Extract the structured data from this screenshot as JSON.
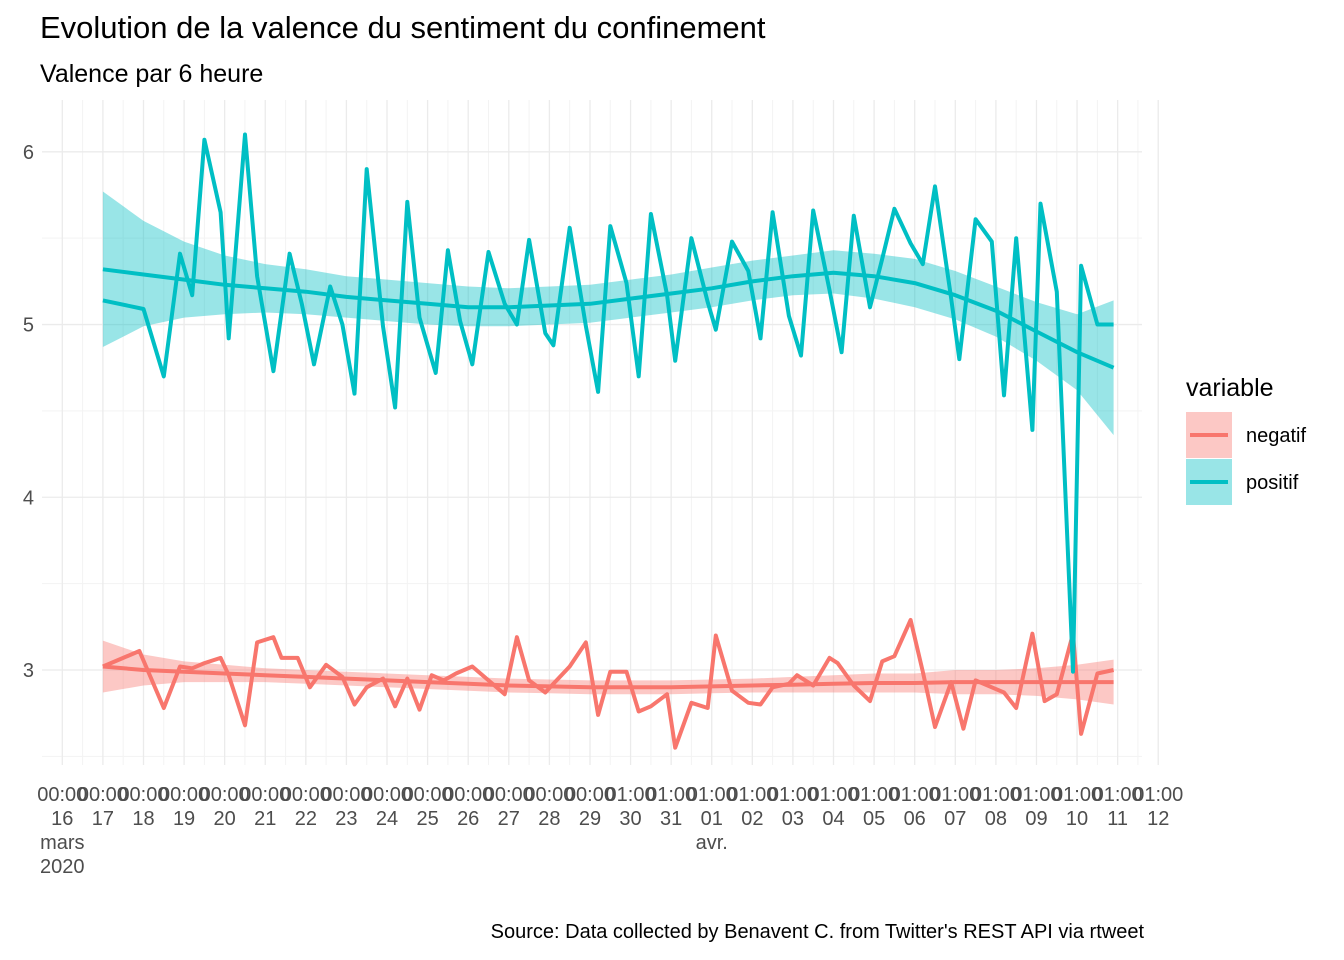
{
  "chart_data": {
    "type": "line",
    "title": "Evolution de la valence du sentiment du confinement",
    "subtitle": "Valence par 6 heure",
    "caption": "Source: Data collected by Benavent C. from Twitter's REST API via rtweet",
    "xlabel": "",
    "ylabel": "",
    "ylim": [
      2.45,
      6.3
    ],
    "y_ticks": [
      3,
      4,
      5,
      6
    ],
    "x_range_days": [
      15.5,
      42.6
    ],
    "x_tick_labels": [
      {
        "time": "00:00",
        "day": "16",
        "month": "mars",
        "year": "2020"
      },
      {
        "time": "00:00",
        "day": "17"
      },
      {
        "time": "00:00",
        "day": "18"
      },
      {
        "time": "00:00",
        "day": "19"
      },
      {
        "time": "00:00",
        "day": "20"
      },
      {
        "time": "00:00",
        "day": "21"
      },
      {
        "time": "00:00",
        "day": "22"
      },
      {
        "time": "00:00",
        "day": "23"
      },
      {
        "time": "00:00",
        "day": "24"
      },
      {
        "time": "00:00",
        "day": "25"
      },
      {
        "time": "00:00",
        "day": "26"
      },
      {
        "time": "00:00",
        "day": "27"
      },
      {
        "time": "00:00",
        "day": "28"
      },
      {
        "time": "00:00",
        "day": "29"
      },
      {
        "time": "01:00",
        "day": "30"
      },
      {
        "time": "01:00",
        "day": "31"
      },
      {
        "time": "01:00",
        "day": "01",
        "month": "avr."
      },
      {
        "time": "01:00",
        "day": "02"
      },
      {
        "time": "01:00",
        "day": "03"
      },
      {
        "time": "01:00",
        "day": "04"
      },
      {
        "time": "01:00",
        "day": "05"
      },
      {
        "time": "01:00",
        "day": "06"
      },
      {
        "time": "01:00",
        "day": "07"
      },
      {
        "time": "01:00",
        "day": "08"
      },
      {
        "time": "01:00",
        "day": "09"
      },
      {
        "time": "01:00",
        "day": "10"
      },
      {
        "time": "01:00",
        "day": "11"
      },
      {
        "time": "01:00",
        "day": "12"
      }
    ],
    "grid": true,
    "legend_title": "variable",
    "legend_position": "right",
    "series": [
      {
        "name": "negatif",
        "color": "#F8766D",
        "ribbon_color": "#F8766D",
        "x": [
          17.0,
          17.5,
          17.9,
          18.5,
          18.9,
          19.2,
          19.5,
          19.9,
          20.1,
          20.5,
          20.8,
          21.2,
          21.4,
          21.8,
          22.1,
          22.5,
          22.9,
          23.2,
          23.5,
          23.9,
          24.2,
          24.5,
          24.8,
          25.1,
          25.4,
          25.7,
          26.1,
          26.5,
          26.9,
          27.2,
          27.5,
          27.9,
          28.1,
          28.5,
          28.9,
          29.2,
          29.5,
          29.9,
          30.2,
          30.5,
          30.9,
          31.1,
          31.5,
          31.9,
          32.1,
          32.5,
          32.9,
          33.2,
          33.5,
          33.9,
          34.1,
          34.5,
          34.9,
          35.1,
          35.5,
          35.9,
          36.2,
          36.5,
          36.9,
          37.2,
          37.5,
          37.9,
          38.2,
          38.5,
          38.9,
          39.2,
          39.5,
          39.9,
          40.2,
          40.5,
          40.9,
          41.1,
          41.5,
          41.9
        ],
        "values": [
          3.02,
          3.07,
          3.11,
          2.78,
          3.02,
          3.01,
          3.04,
          3.07,
          2.97,
          2.68,
          3.16,
          3.19,
          3.07,
          3.07,
          2.9,
          3.03,
          2.96,
          2.8,
          2.9,
          2.95,
          2.79,
          2.95,
          2.77,
          2.97,
          2.94,
          2.98,
          3.02,
          2.94,
          2.86,
          3.19,
          2.94,
          2.87,
          2.92,
          3.02,
          3.16,
          2.74,
          2.99,
          2.99,
          2.76,
          2.79,
          2.86,
          2.55,
          2.81,
          2.78,
          3.2,
          2.88,
          2.81,
          2.8,
          2.9,
          2.92,
          2.97,
          2.91,
          3.07,
          3.04,
          2.91,
          2.82,
          3.05,
          3.08,
          3.29,
          2.99,
          2.67,
          2.93,
          2.66,
          2.94,
          2.9,
          2.87,
          2.78,
          3.21,
          2.82,
          2.86,
          3.21,
          2.63,
          2.98,
          3.0
        ],
        "smooth_x": [
          17,
          18,
          19,
          20,
          21,
          22,
          23,
          24,
          25,
          26,
          27,
          28,
          29,
          30,
          31,
          32,
          33,
          34,
          35,
          36,
          37,
          38,
          39,
          40,
          41,
          41.9
        ],
        "smooth": [
          3.02,
          3.0,
          2.99,
          2.98,
          2.97,
          2.96,
          2.95,
          2.94,
          2.93,
          2.92,
          2.91,
          2.905,
          2.9,
          2.9,
          2.9,
          2.905,
          2.91,
          2.915,
          2.92,
          2.925,
          2.925,
          2.93,
          2.93,
          2.93,
          2.93,
          2.93
        ],
        "ribbon_lower": [
          2.87,
          2.91,
          2.93,
          2.93,
          2.93,
          2.92,
          2.91,
          2.9,
          2.89,
          2.88,
          2.87,
          2.865,
          2.86,
          2.86,
          2.86,
          2.865,
          2.87,
          2.87,
          2.87,
          2.87,
          2.87,
          2.86,
          2.86,
          2.85,
          2.83,
          2.8
        ],
        "ribbon_upper": [
          3.17,
          3.09,
          3.05,
          3.03,
          3.01,
          3.0,
          2.99,
          2.98,
          2.97,
          2.96,
          2.95,
          2.945,
          2.94,
          2.94,
          2.94,
          2.945,
          2.95,
          2.96,
          2.97,
          2.98,
          2.98,
          3.0,
          3.0,
          3.01,
          3.03,
          3.06
        ]
      },
      {
        "name": "positif",
        "color": "#00BFC4",
        "ribbon_color": "#00BFC4",
        "x": [
          17.0,
          18.0,
          18.5,
          18.9,
          19.2,
          19.5,
          19.9,
          20.1,
          20.5,
          20.8,
          21.2,
          21.6,
          21.9,
          22.2,
          22.6,
          22.9,
          23.2,
          23.5,
          23.9,
          24.2,
          24.5,
          24.8,
          25.2,
          25.5,
          25.8,
          26.1,
          26.5,
          26.9,
          27.2,
          27.5,
          27.9,
          28.1,
          28.5,
          28.9,
          29.2,
          29.5,
          29.9,
          30.2,
          30.5,
          30.9,
          31.1,
          31.5,
          31.9,
          32.1,
          32.5,
          32.9,
          33.2,
          33.5,
          33.9,
          34.2,
          34.5,
          34.9,
          35.2,
          35.5,
          35.9,
          36.2,
          36.5,
          36.9,
          37.2,
          37.5,
          37.9,
          38.1,
          38.5,
          38.9,
          39.2,
          39.5,
          39.9,
          40.1,
          40.5,
          40.9,
          41.1,
          41.5,
          41.9
        ],
        "values": [
          5.14,
          5.09,
          4.7,
          5.41,
          5.17,
          6.07,
          5.65,
          4.92,
          6.1,
          5.28,
          4.73,
          5.41,
          5.12,
          4.77,
          5.22,
          5.0,
          4.6,
          5.9,
          4.99,
          4.52,
          5.71,
          5.04,
          4.72,
          5.43,
          5.02,
          4.77,
          5.42,
          5.12,
          5.0,
          5.49,
          4.95,
          4.88,
          5.56,
          4.99,
          4.61,
          5.57,
          5.24,
          4.7,
          5.64,
          5.17,
          4.79,
          5.5,
          5.13,
          4.97,
          5.48,
          5.31,
          4.92,
          5.65,
          5.05,
          4.82,
          5.66,
          5.2,
          4.84,
          5.63,
          5.1,
          5.38,
          5.67,
          5.47,
          5.35,
          5.8,
          5.15,
          4.8,
          5.61,
          5.48,
          4.59,
          5.5,
          4.39,
          5.7,
          5.19,
          2.99,
          5.34,
          5.0,
          5.0
        ],
        "smooth_x": [
          17,
          18,
          19,
          20,
          21,
          22,
          23,
          24,
          25,
          26,
          27,
          28,
          29,
          30,
          31,
          32,
          33,
          34,
          35,
          36,
          37,
          38,
          39,
          40,
          41,
          41.9
        ],
        "smooth": [
          5.32,
          5.29,
          5.26,
          5.23,
          5.21,
          5.19,
          5.16,
          5.14,
          5.12,
          5.1,
          5.1,
          5.11,
          5.12,
          5.15,
          5.18,
          5.21,
          5.25,
          5.28,
          5.3,
          5.28,
          5.24,
          5.17,
          5.08,
          4.96,
          4.84,
          4.75
        ],
        "ribbon_lower": [
          4.87,
          4.99,
          5.04,
          5.06,
          5.07,
          5.06,
          5.04,
          5.02,
          5.0,
          4.99,
          4.99,
          5.0,
          5.01,
          5.04,
          5.07,
          5.1,
          5.14,
          5.17,
          5.18,
          5.15,
          5.1,
          5.03,
          4.93,
          4.79,
          4.62,
          4.36
        ],
        "ribbon_upper": [
          5.77,
          5.6,
          5.48,
          5.4,
          5.35,
          5.32,
          5.28,
          5.26,
          5.24,
          5.22,
          5.21,
          5.22,
          5.23,
          5.26,
          5.29,
          5.33,
          5.37,
          5.4,
          5.43,
          5.41,
          5.38,
          5.31,
          5.22,
          5.13,
          5.06,
          5.14
        ]
      }
    ]
  }
}
